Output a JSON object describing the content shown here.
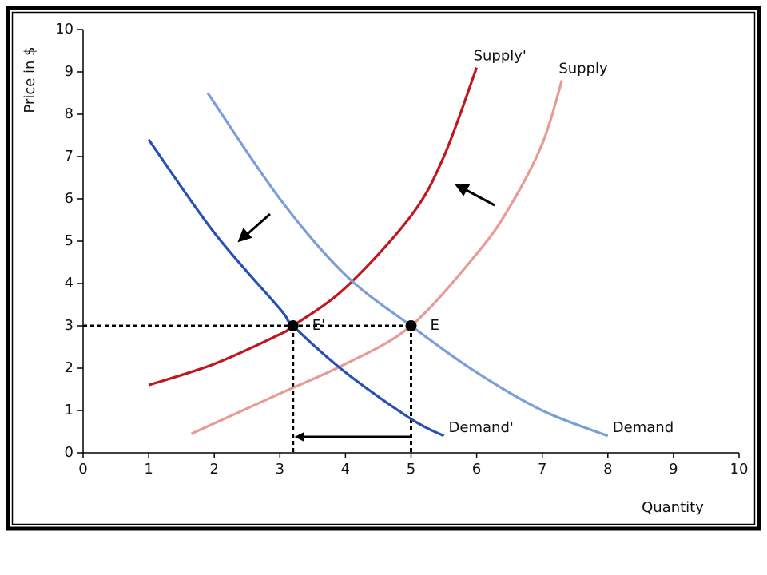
{
  "chart_data": {
    "type": "line",
    "y_label": "Price in $",
    "x_label": "Quantity",
    "xlim": [
      0,
      10
    ],
    "ylim": [
      0,
      10
    ],
    "xticks": [
      0,
      1,
      2,
      3,
      4,
      5,
      6,
      7,
      8,
      9,
      10
    ],
    "yticks": [
      0,
      1,
      2,
      3,
      4,
      5,
      6,
      7,
      8,
      9,
      10
    ],
    "series": [
      {
        "name": "Supply'",
        "color": "#c0161c",
        "x": [
          1,
          2,
          3,
          3.2,
          4,
          5,
          5.5,
          6
        ],
        "values": [
          1.6,
          2.1,
          2.8,
          3,
          3.9,
          5.6,
          7,
          9.1
        ]
      },
      {
        "name": "Supply",
        "color": "#e89a94",
        "x": [
          1.65,
          3,
          4,
          5,
          6,
          6.5,
          7,
          7.3
        ],
        "values": [
          0.45,
          1.4,
          2.1,
          3,
          4.7,
          5.8,
          7.3,
          8.8
        ]
      },
      {
        "name": "Demand'",
        "color": "#2650b8",
        "x": [
          1,
          2,
          3,
          3.2,
          4,
          5,
          5.5
        ],
        "values": [
          7.4,
          5.2,
          3.4,
          3,
          1.9,
          0.8,
          0.4
        ]
      },
      {
        "name": "Demand",
        "color": "#7b9ed8",
        "x": [
          1.9,
          3,
          4,
          5,
          6,
          7,
          8
        ],
        "values": [
          8.5,
          6.0,
          4.2,
          3,
          1.9,
          1.0,
          0.4
        ]
      }
    ],
    "points": [
      {
        "label": "E'",
        "x": 3.2,
        "y": 3
      },
      {
        "label": "E",
        "x": 5,
        "y": 3
      }
    ]
  }
}
